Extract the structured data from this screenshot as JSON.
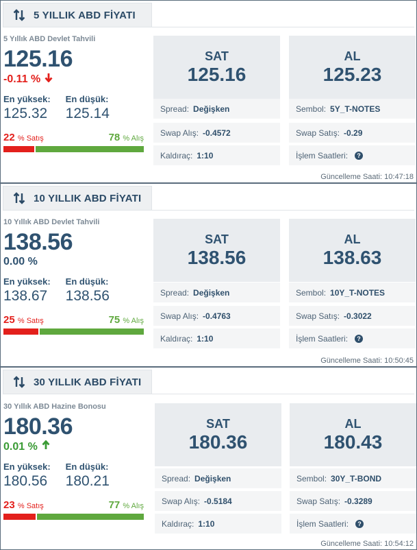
{
  "panels": [
    {
      "title": "5 YILLIK ABD FİYATI",
      "subtitle": "5 Yıllık ABD Devlet Tahvili",
      "price": "125.16",
      "change": "-0.11 %",
      "change_dir": "down",
      "high_label": "En yüksek:",
      "high": "125.32",
      "low_label": "En düşük:",
      "low": "125.14",
      "sell_pct": "22",
      "sell_label": "% Satış",
      "buy_pct": "78",
      "buy_label": "% Alış",
      "sell_fraction": 0.22,
      "sat_label": "SAT",
      "sat_value": "125.16",
      "al_label": "AL",
      "al_value": "125.23",
      "spread_label": "Spread:",
      "spread_value": "Değişken",
      "symbol_label": "Sembol:",
      "symbol_value": "5Y_T-NOTES",
      "swap_buy_label": "Swap Alış:",
      "swap_buy_value": "-0.4572",
      "swap_sell_label": "Swap Satış:",
      "swap_sell_value": "-0.29",
      "leverage_label": "Kaldıraç:",
      "leverage_value": "1:10",
      "hours_label": "İşlem Saatleri:",
      "update_label": "Güncelleme Saati:",
      "update_time": "10:47:18"
    },
    {
      "title": "10 YILLIK ABD FİYATI",
      "subtitle": "10 Yıllık ABD Devlet Tahvili",
      "price": "138.56",
      "change": "0.00 %",
      "change_dir": "none",
      "high_label": "En yüksek:",
      "high": "138.67",
      "low_label": "En düşük:",
      "low": "138.56",
      "sell_pct": "25",
      "sell_label": "% Satış",
      "buy_pct": "75",
      "buy_label": "% Alış",
      "sell_fraction": 0.25,
      "sat_label": "SAT",
      "sat_value": "138.56",
      "al_label": "AL",
      "al_value": "138.63",
      "spread_label": "Spread:",
      "spread_value": "Değişken",
      "symbol_label": "Sembol:",
      "symbol_value": "10Y_T-NOTES",
      "swap_buy_label": "Swap Alış:",
      "swap_buy_value": "-0.4763",
      "swap_sell_label": "Swap Satış:",
      "swap_sell_value": "-0.3022",
      "leverage_label": "Kaldıraç:",
      "leverage_value": "1:10",
      "hours_label": "İşlem Saatleri:",
      "update_label": "Güncelleme Saati:",
      "update_time": "10:50:45"
    },
    {
      "title": "30 YILLIK ABD FİYATI",
      "subtitle": "30 Yıllık ABD Hazine Bonosu",
      "price": "180.36",
      "change": "0.01 %",
      "change_dir": "up",
      "high_label": "En yüksek:",
      "high": "180.56",
      "low_label": "En düşük:",
      "low": "180.21",
      "sell_pct": "23",
      "sell_label": "% Satış",
      "buy_pct": "77",
      "buy_label": "% Alış",
      "sell_fraction": 0.23,
      "sat_label": "SAT",
      "sat_value": "180.36",
      "al_label": "AL",
      "al_value": "180.43",
      "spread_label": "Spread:",
      "spread_value": "Değişken",
      "symbol_label": "Sembol:",
      "symbol_value": "30Y_T-BOND",
      "swap_buy_label": "Swap Alış:",
      "swap_buy_value": "-0.5184",
      "swap_sell_label": "Swap Satış:",
      "swap_sell_value": "-0.3289",
      "leverage_label": "Kaldıraç:",
      "leverage_value": "1:10",
      "hours_label": "İşlem Saatleri:",
      "update_label": "Güncelleme Saati:",
      "update_time": "10:54:12"
    }
  ],
  "colors": {
    "negative": "#e3201c",
    "positive": "#3a9b35",
    "neutral": "#2f5270",
    "buy_bar": "#5fa83e",
    "sell_bar": "#e3201c"
  },
  "icons": {
    "tab": "swap-arrows-icon",
    "down": "arrow-down-icon",
    "up": "arrow-up-icon",
    "hours": "question-circle-icon"
  }
}
